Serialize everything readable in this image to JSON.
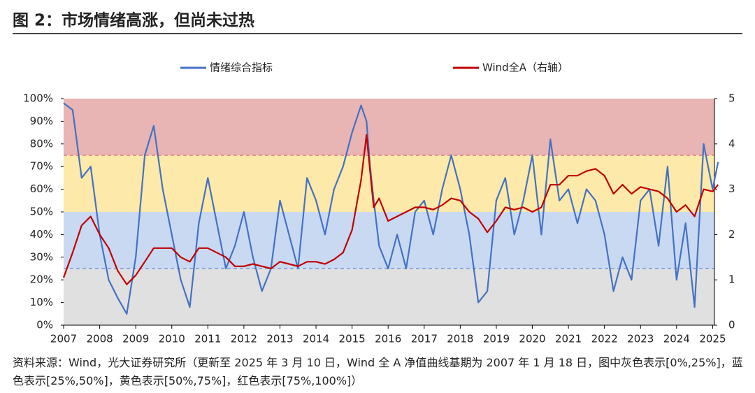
{
  "chart_data": {
    "type": "line",
    "title": "图 2：市场情绪高涨，但尚未过热",
    "note": "资料来源：Wind，光大证券研究所（更新至 2025 年 3 月 10 日，Wind 全 A 净值曲线基期为 2007 年 1 月 18 日，图中灰色表示[0%,25%]，蓝色表示[25%,50%]，黄色表示[50%,75%]，红色表示[75%,100%]）",
    "x": [
      2007,
      2007.25,
      2007.5,
      2007.75,
      2008,
      2008.25,
      2008.5,
      2008.75,
      2009,
      2009.25,
      2009.5,
      2009.75,
      2010,
      2010.25,
      2010.5,
      2010.75,
      2011,
      2011.25,
      2011.5,
      2011.75,
      2012,
      2012.25,
      2012.5,
      2012.75,
      2013,
      2013.25,
      2013.5,
      2013.75,
      2014,
      2014.25,
      2014.5,
      2014.75,
      2015,
      2015.25,
      2015.4,
      2015.5,
      2015.6,
      2015.75,
      2016,
      2016.25,
      2016.5,
      2016.75,
      2017,
      2017.25,
      2017.5,
      2017.75,
      2018,
      2018.25,
      2018.5,
      2018.75,
      2019,
      2019.25,
      2019.5,
      2019.75,
      2020,
      2020.25,
      2020.5,
      2020.75,
      2021,
      2021.25,
      2021.5,
      2021.75,
      2022,
      2022.25,
      2022.5,
      2022.75,
      2023,
      2023.25,
      2023.5,
      2023.75,
      2024,
      2024.25,
      2024.5,
      2024.75,
      2025,
      2025.15
    ],
    "series": [
      {
        "name": "情绪综合指标",
        "color": "#4472c4",
        "values": [
          98,
          95,
          65,
          70,
          40,
          20,
          12,
          5,
          30,
          75,
          88,
          60,
          40,
          20,
          8,
          45,
          65,
          45,
          25,
          35,
          50,
          30,
          15,
          25,
          55,
          40,
          25,
          65,
          55,
          40,
          60,
          70,
          85,
          97,
          90,
          70,
          55,
          35,
          25,
          40,
          25,
          50,
          55,
          40,
          60,
          75,
          60,
          40,
          10,
          15,
          55,
          65,
          40,
          55,
          75,
          40,
          82,
          55,
          60,
          45,
          60,
          55,
          40,
          15,
          30,
          20,
          55,
          60,
          35,
          70,
          20,
          45,
          8,
          80,
          60,
          72
        ]
      },
      {
        "name": "Wind全A（右轴）",
        "color": "#c00000",
        "axis": "y2",
        "values": [
          1.05,
          1.6,
          2.2,
          2.4,
          2.0,
          1.7,
          1.2,
          0.9,
          1.1,
          1.4,
          1.7,
          1.7,
          1.7,
          1.5,
          1.4,
          1.7,
          1.7,
          1.6,
          1.5,
          1.3,
          1.3,
          1.35,
          1.3,
          1.25,
          1.4,
          1.35,
          1.3,
          1.4,
          1.4,
          1.35,
          1.45,
          1.6,
          2.1,
          3.2,
          4.2,
          3.4,
          2.6,
          2.8,
          2.3,
          2.4,
          2.5,
          2.6,
          2.6,
          2.55,
          2.65,
          2.8,
          2.75,
          2.5,
          2.35,
          2.05,
          2.3,
          2.6,
          2.55,
          2.6,
          2.5,
          2.6,
          3.1,
          3.1,
          3.3,
          3.3,
          3.4,
          3.45,
          3.3,
          2.9,
          3.1,
          2.9,
          3.05,
          3.0,
          2.95,
          2.8,
          2.5,
          2.65,
          2.4,
          3.0,
          2.95,
          3.1
        ]
      }
    ],
    "xlim": [
      2007,
      2025.05
    ],
    "xticks": [
      2007,
      2008,
      2009,
      2010,
      2011,
      2012,
      2013,
      2014,
      2015,
      2016,
      2017,
      2018,
      2019,
      2020,
      2021,
      2022,
      2023,
      2024,
      2025
    ],
    "ylim": [
      0,
      100
    ],
    "yticks": [
      {
        "value": 0,
        "label": "0%"
      },
      {
        "value": 10,
        "label": "10%"
      },
      {
        "value": 20,
        "label": "20%"
      },
      {
        "value": 30,
        "label": "30%"
      },
      {
        "value": 40,
        "label": "40%"
      },
      {
        "value": 50,
        "label": "50%"
      },
      {
        "value": 60,
        "label": "60%"
      },
      {
        "value": 70,
        "label": "70%"
      },
      {
        "value": 80,
        "label": "80%"
      },
      {
        "value": 90,
        "label": "90%"
      },
      {
        "value": 100,
        "label": "100%"
      }
    ],
    "y2lim": [
      0,
      5
    ],
    "y2ticks": [
      0,
      1,
      2,
      3,
      4,
      5
    ],
    "bands": [
      {
        "from": 0,
        "to": 25,
        "color": "#e0e0e0"
      },
      {
        "from": 25,
        "to": 50,
        "color": "#c9d9f2"
      },
      {
        "from": 50,
        "to": 75,
        "color": "#fde9a9"
      },
      {
        "from": 75,
        "to": 100,
        "color": "#e8b4b4"
      }
    ],
    "dashed_lines": [
      {
        "value": 25,
        "color": "#8fa8e0"
      },
      {
        "value": 75,
        "color": "#e89090"
      }
    ]
  }
}
